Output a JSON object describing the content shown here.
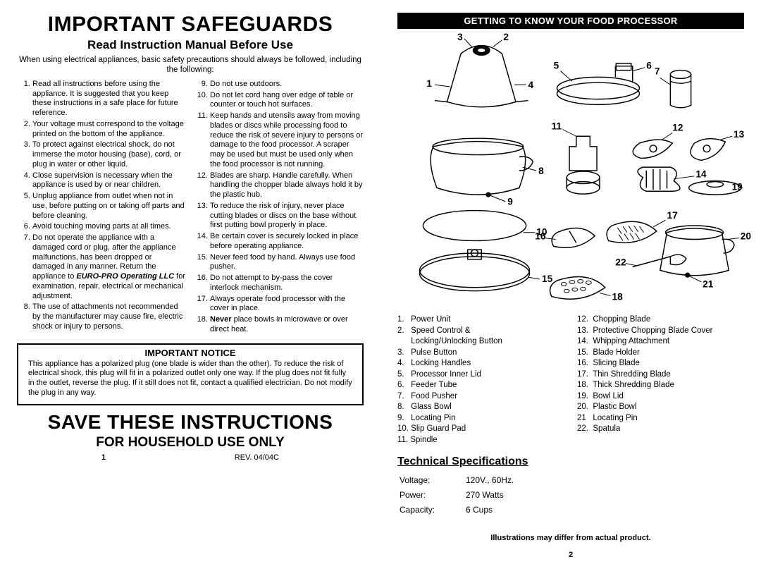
{
  "left": {
    "title": "IMPORTANT SAFEGUARDS",
    "subtitle": "Read Instruction Manual Before Use",
    "intro": "When using electrical appliances, basic safety precautions should always be followed, including the following:",
    "col1": [
      "Read all instructions before using the appliance.  It is suggested that you keep these instructions in a safe place for future reference.",
      "Your voltage must correspond to the voltage printed on the bottom of the appliance.",
      "To protect against electrical shock, do not immerse the motor housing (base), cord, or plug in water or other liquid.",
      "Close supervision is necessary when the appliance is used by or near children.",
      "Unplug appliance from outlet when not in use, before putting on or taking off parts and before cleaning.",
      "Avoid touching moving parts at all times.",
      "Do not operate the appliance with a damaged cord or plug, after the appliance malfunctions, has been dropped or damaged in any manner.  Return the appliance to <span class=\"bolditalic\">EURO-PRO Operating LLC</span>  for examination, repair, electrical or mechanical adjustment.",
      "The use of attachments not recommended by the manufacturer may cause fire, electric shock or injury to persons."
    ],
    "col2_start": 9,
    "col2": [
      "Do not use outdoors.",
      "Do not let cord hang over edge of table or counter or touch hot surfaces.",
      "Keep hands and utensils away from moving blades or discs while processing food to reduce the risk of severe injury to persons or damage to the food processor.  A scraper may be used but must be used only when the food processor is not running.",
      "Blades are sharp. Handle carefully.  When handling the chopper blade always hold it by the plastic hub.",
      "To reduce the risk of injury, never place cutting blades or discs on the base without first putting bowl properly in place.",
      "Be certain cover is securely locked in place before operating appliance.",
      "Never feed food by hand. Always use food pusher.",
      "Do not attempt to by-pass the cover interlock mechanism.",
      "Always operate food processor with the cover in place.",
      "<span class=\"bold\">Never</span> place bowls in microwave or over direct heat."
    ],
    "notice_title": "IMPORTANT NOTICE",
    "notice_body": "This appliance has a polarized plug (one blade is wider than the other). To reduce the risk of electrical shock, this plug will fit in a polarized outlet only one way.  If the plug does not fit fully in the outlet, reverse the plug. If it still does not fit, contact a qualified electrician. Do not modify the plug in any way.",
    "save": "SAVE THESE INSTRUCTIONS",
    "household": "FOR HOUSEHOLD USE ONLY",
    "page_num": "1",
    "rev": "REV. 04/04C"
  },
  "right": {
    "banner": "GETTING TO KNOW  YOUR FOOD PROCESSOR",
    "labels": {
      "1": "1",
      "2": "2",
      "3": "3",
      "4": "4",
      "5": "5",
      "6": "6",
      "7": "7",
      "8": "8",
      "9": "9",
      "10": "10",
      "11": "11",
      "12": "12",
      "13": "13",
      "14": "14",
      "15": "15",
      "16": "16",
      "17": "17",
      "18": "18",
      "19": "19",
      "20": "20",
      "21": "21",
      "22": "22"
    },
    "parts_left": [
      "1.   Power Unit",
      "2.   Speed Control &",
      "      Locking/Unlocking Button",
      "3.   Pulse Button",
      "4.   Locking Handles",
      "5.   Processor Inner Lid",
      "6.   Feeder Tube",
      "7.   Food Pusher",
      "8.   Glass Bowl",
      "9.   Locating Pin",
      "10. Slip Guard Pad",
      "11. Spindle"
    ],
    "parts_right": [
      "12.  Chopping Blade",
      "13.  Protective Chopping Blade Cover",
      "14.  Whipping Attachment",
      "15.  Blade Holder",
      "16.  Slicing Blade",
      "17.  Thin Shredding Blade",
      "18.  Thick Shredding Blade",
      "19.  Bowl Lid",
      "20.  Plastic Bowl",
      "21   Locating Pin",
      "22.  Spatula"
    ],
    "tech_title": "Technical Specifications",
    "specs": [
      [
        "Voltage:",
        "120V.,  60Hz."
      ],
      [
        "Power:",
        "270 Watts"
      ],
      [
        "Capacity:",
        "6 Cups"
      ]
    ],
    "illus_note": "Illustrations may differ from actual product.",
    "page_num": "2"
  },
  "colors": {
    "text": "#000000",
    "bg": "#ffffff",
    "banner_bg": "#000000",
    "banner_fg": "#ffffff",
    "stroke": "#000000"
  }
}
